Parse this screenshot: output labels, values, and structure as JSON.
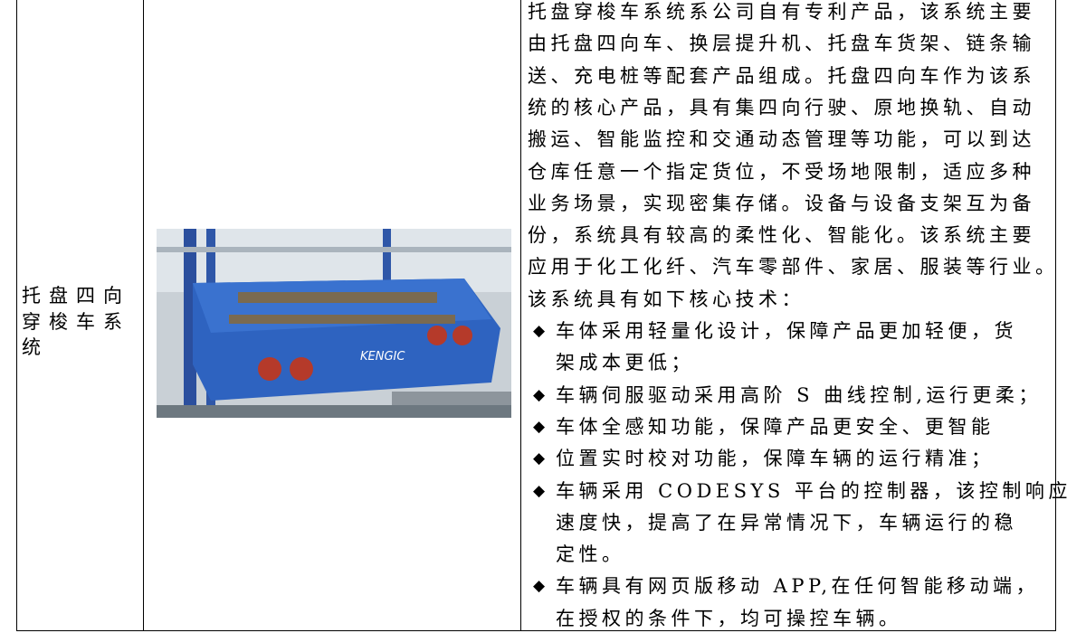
{
  "row": {
    "name_lines": [
      "托盘四向",
      "穿梭车系",
      "统"
    ],
    "description_lines": [
      "托盘穿梭车系统系公司自有专利产品，该系统主要",
      "由托盘四向车、换层提升机、托盘车货架、链条输",
      "送、充电桩等配套产品组成。托盘四向车作为该系",
      "统的核心产品，具有集四向行驶、原地换轨、自动",
      "搬运、智能监控和交通动态管理等功能，可以到达",
      "仓库任意一个指定货位，不受场地限制，适应多种",
      "业务场景，实现密集存储。设备与设备支架互为备",
      "份，系统具有较高的柔性化、智能化。该系统主要",
      "应用于化工化纤、汽车零部件、家居、服装等行业。",
      "该系统具有如下核心技术："
    ],
    "bullet_marker": "◆",
    "bullets": [
      [
        "车体采用轻量化设计，保障产品更加轻便，货",
        "架成本更低；"
      ],
      [
        "车辆伺服驱动采用高阶 S 曲线控制,运行更柔；"
      ],
      [
        "车体全感知功能，保障产品更安全、更智能"
      ],
      [
        "位置实时校对功能，保障车辆的运行精准；"
      ],
      [
        "车辆采用 CODESYS 平台的控制器，该控制响应",
        "速度快，提高了在异常情况下，车辆运行的稳",
        "定性。"
      ],
      [
        "车辆具有网页版移动 APP,在任何智能移动端，",
        "在授权的条件下，均可操控车辆。"
      ]
    ]
  }
}
